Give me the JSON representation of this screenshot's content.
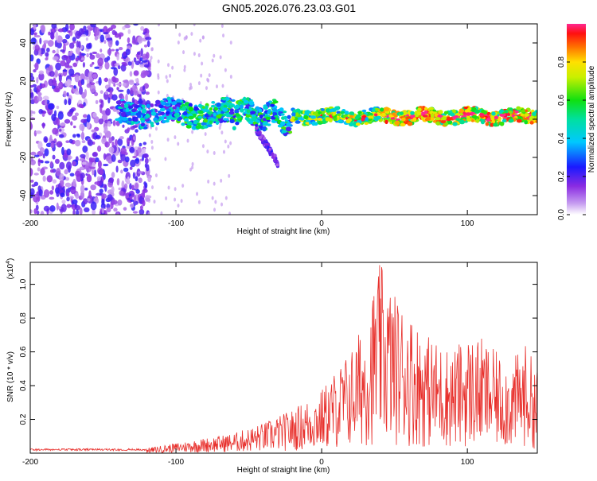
{
  "title": "GN05.2026.076.23.03.G01",
  "colors": {
    "spectrum_dot": "#7a28e8",
    "snr_line": "#e8302c",
    "frame": "#000000"
  },
  "chart_data": [
    {
      "type": "heatmap",
      "title": "GN05.2026.076.23.03.G01",
      "xlabel": "Height of straight line (km)",
      "ylabel": "Frequency (Hz)",
      "xlim": [
        -200,
        148
      ],
      "ylim": [
        -50,
        50
      ],
      "xticks": [
        "-200",
        "-100",
        "0",
        "100"
      ],
      "yticks": [
        "-40",
        "-20",
        "0",
        "20",
        "40"
      ],
      "colorbar": {
        "label": "Normalized spectral amplitude",
        "range": [
          0.0,
          1.0
        ],
        "ticks": [
          "0.0",
          "0.2",
          "0.4",
          "0.6",
          "0.8"
        ]
      },
      "features": [
        {
          "name": "broadband noise",
          "x_range": [
            -200,
            -120
          ],
          "y_range": [
            -50,
            50
          ],
          "amplitude": "0.1-0.3"
        },
        {
          "name": "signal band",
          "x_range": [
            -140,
            148
          ],
          "center_hz": [
            3,
            2,
            0,
            3,
            1,
            1,
            1,
            1
          ],
          "amplitude": "0.3-0.9"
        }
      ]
    },
    {
      "type": "line",
      "xlabel": "Height of straight line (km)",
      "ylabel": "SNR (10 * v/v)",
      "y_multiplier": "(x10^4)",
      "xlim": [
        -200,
        148
      ],
      "ylim": [
        0,
        1.13
      ],
      "xticks": [
        "-200",
        "-100",
        "0",
        "100"
      ],
      "yticks": [
        "0.2",
        "0.4",
        "0.6",
        "0.8",
        "1.0"
      ],
      "series": [
        {
          "name": "SNR envelope",
          "x": [
            -200,
            -150,
            -120,
            -100,
            -80,
            -60,
            -40,
            -20,
            0,
            10,
            20,
            30,
            40,
            50,
            60,
            70,
            80,
            90,
            100,
            110,
            120,
            130,
            140,
            148
          ],
          "values": [
            0.02,
            0.02,
            0.03,
            0.06,
            0.09,
            0.12,
            0.18,
            0.26,
            0.38,
            0.5,
            0.62,
            0.8,
            1.13,
            0.95,
            0.85,
            0.72,
            0.66,
            0.62,
            0.7,
            0.68,
            0.6,
            0.55,
            0.65,
            0.5
          ]
        }
      ]
    }
  ]
}
